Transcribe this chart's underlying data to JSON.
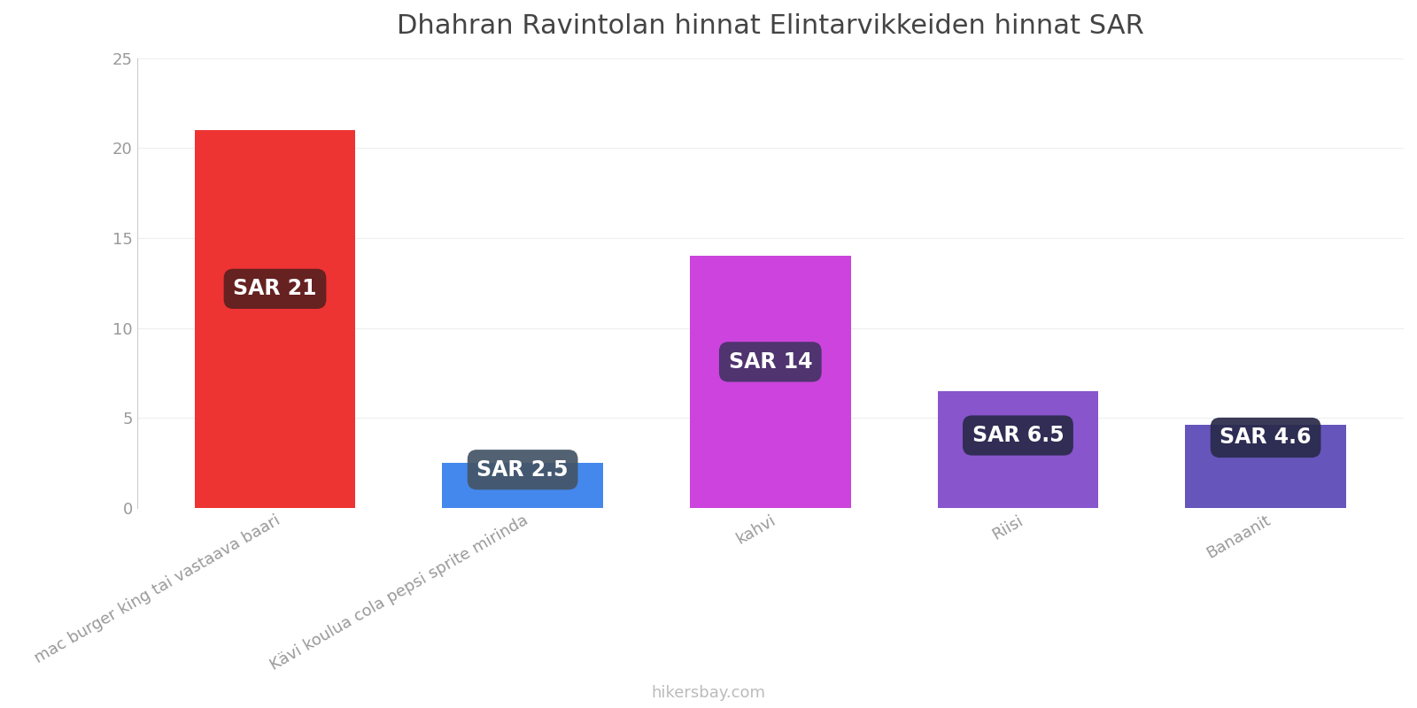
{
  "title": "Dhahran Ravintolan hinnat Elintarvikkeiden hinnat SAR",
  "categories": [
    "mac burger king tai vastaava baari",
    "Kävi koulua cola pepsi sprite mirinda",
    "kahvi",
    "Riisi",
    "Banaanit"
  ],
  "values": [
    21,
    2.5,
    14,
    6.5,
    4.6
  ],
  "bar_colors": [
    "#ee3333",
    "#4488ee",
    "#cc44dd",
    "#8855cc",
    "#6655bb"
  ],
  "label_texts": [
    "SAR 21",
    "SAR 2.5",
    "SAR 14",
    "SAR 6.5",
    "SAR 4.6"
  ],
  "label_bg_colors": [
    "#5a2020",
    "#445566",
    "#443366",
    "#2a2a4a",
    "#2a2a4a"
  ],
  "label_text_color": "#ffffff",
  "ylim": [
    0,
    25
  ],
  "yticks": [
    0,
    5,
    10,
    15,
    20,
    25
  ],
  "title_fontsize": 22,
  "tick_label_fontsize": 13,
  "watermark": "hikersbay.com",
  "background_color": "#ffffff",
  "bar_width": 0.65
}
